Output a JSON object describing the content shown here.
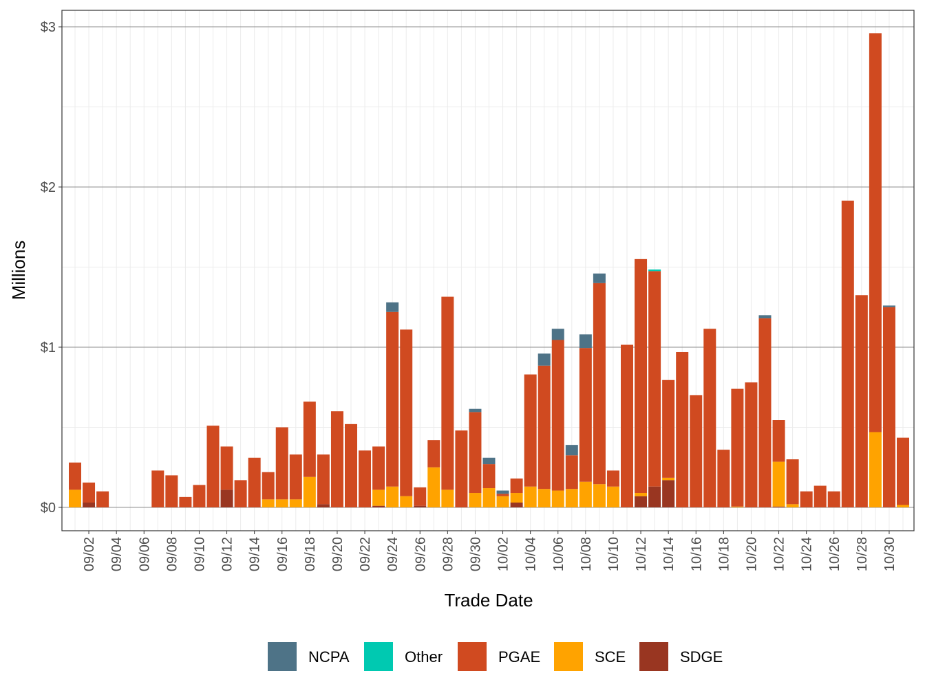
{
  "chart_data": {
    "type": "bar",
    "stacked": true,
    "xlabel": "Trade Date",
    "ylabel": "Millions",
    "ylim": [
      0,
      3
    ],
    "y_ticks": [
      {
        "value": 0,
        "label": "$0"
      },
      {
        "value": 1,
        "label": "$1"
      },
      {
        "value": 2,
        "label": "$2"
      },
      {
        "value": 3,
        "label": "$3"
      }
    ],
    "x_ticks": [
      "09/02",
      "09/04",
      "09/06",
      "09/08",
      "09/10",
      "09/12",
      "09/14",
      "09/16",
      "09/18",
      "09/20",
      "09/22",
      "09/24",
      "09/26",
      "09/28",
      "09/30",
      "10/02",
      "10/04",
      "10/06",
      "10/08",
      "10/10",
      "10/12",
      "10/14",
      "10/16",
      "10/18",
      "10/20",
      "10/22",
      "10/24",
      "10/26",
      "10/28",
      "10/30"
    ],
    "categories": [
      "09/01",
      "09/02",
      "09/03",
      "09/04",
      "09/05",
      "09/06",
      "09/07",
      "09/08",
      "09/09",
      "09/10",
      "09/11",
      "09/12",
      "09/13",
      "09/14",
      "09/15",
      "09/16",
      "09/17",
      "09/18",
      "09/19",
      "09/20",
      "09/21",
      "09/22",
      "09/23",
      "09/24",
      "09/25",
      "09/26",
      "09/27",
      "09/28",
      "09/29",
      "09/30",
      "10/01",
      "10/02",
      "10/03",
      "10/04",
      "10/05",
      "10/06",
      "10/07",
      "10/08",
      "10/09",
      "10/10",
      "10/11",
      "10/12",
      "10/13",
      "10/14",
      "10/15",
      "10/16",
      "10/17",
      "10/18",
      "10/19",
      "10/20",
      "10/21",
      "10/22",
      "10/23",
      "10/24",
      "10/25",
      "10/26",
      "10/27",
      "10/28",
      "10/29",
      "10/30",
      "10/31"
    ],
    "series": [
      {
        "name": "SDGE",
        "color": "#993621",
        "values": [
          0,
          0.03,
          0,
          0,
          0,
          0,
          0,
          0,
          0,
          0,
          0,
          0.11,
          0,
          0,
          0,
          0,
          0,
          0,
          0.02,
          0,
          0,
          0,
          0.01,
          0,
          0,
          0.01,
          0,
          0,
          0,
          0,
          0,
          0,
          0.03,
          0,
          0,
          0,
          0,
          0,
          0,
          0,
          0,
          0.07,
          0.13,
          0.17,
          0,
          0,
          0,
          0,
          0,
          0,
          0,
          0.005,
          0,
          0,
          0,
          0,
          0,
          0,
          0,
          0,
          0
        ]
      },
      {
        "name": "SCE",
        "color": "#ffa300",
        "values": [
          0.11,
          0,
          0,
          0,
          0,
          0,
          0,
          0,
          0,
          0,
          0,
          0,
          0,
          0,
          0.05,
          0.05,
          0.05,
          0.19,
          0,
          0,
          0,
          0,
          0.1,
          0.13,
          0.07,
          0,
          0.25,
          0.11,
          0,
          0.09,
          0.12,
          0.07,
          0.06,
          0.13,
          0.115,
          0.105,
          0.115,
          0.16,
          0.145,
          0.13,
          0,
          0.02,
          0,
          0.015,
          0,
          0,
          0,
          0,
          0.005,
          0,
          0,
          0.28,
          0.02,
          0,
          0,
          0,
          0,
          0,
          0.47,
          0,
          0.015
        ]
      },
      {
        "name": "PGAE",
        "color": "#d04a20",
        "values": [
          0.17,
          0.125,
          0.1,
          0,
          0,
          0,
          0.23,
          0.2,
          0.065,
          0.14,
          0.51,
          0.27,
          0.17,
          0.31,
          0.17,
          0.45,
          0.28,
          0.47,
          0.31,
          0.6,
          0.52,
          0.355,
          0.27,
          1.09,
          1.04,
          0.115,
          0.17,
          1.205,
          0.48,
          0.505,
          0.15,
          0.015,
          0.09,
          0.7,
          0.77,
          0.94,
          0.21,
          0.835,
          1.255,
          0.1,
          1.015,
          1.46,
          1.345,
          0.61,
          0.97,
          0.7,
          1.115,
          0.36,
          0.735,
          0.78,
          1.18,
          0.26,
          0.28,
          0.1,
          0.135,
          0.1,
          1.915,
          1.325,
          2.49,
          1.25,
          0.42
        ]
      },
      {
        "name": "Other",
        "color": "#00c9b1",
        "values": [
          0,
          0,
          0,
          0,
          0,
          0,
          0,
          0,
          0,
          0,
          0,
          0,
          0,
          0,
          0,
          0,
          0,
          0,
          0,
          0,
          0,
          0,
          0,
          0,
          0,
          0,
          0,
          0,
          0,
          0,
          0,
          0,
          0,
          0,
          0,
          0,
          0,
          0,
          0,
          0,
          0,
          0,
          0.01,
          0,
          0,
          0,
          0,
          0,
          0,
          0,
          0,
          0,
          0,
          0,
          0,
          0,
          0,
          0,
          0,
          0,
          0
        ]
      },
      {
        "name": "NCPA",
        "color": "#4e7387",
        "values": [
          0,
          0,
          0,
          0,
          0,
          0,
          0,
          0,
          0,
          0,
          0,
          0,
          0,
          0,
          0,
          0,
          0,
          0,
          0,
          0,
          0,
          0,
          0,
          0.06,
          0,
          0,
          0,
          0,
          0,
          0.02,
          0.04,
          0.02,
          0,
          0,
          0.075,
          0.07,
          0.065,
          0.085,
          0.06,
          0,
          0,
          0,
          0,
          0,
          0,
          0,
          0,
          0,
          0,
          0,
          0.02,
          0,
          0,
          0,
          0,
          0,
          0,
          0,
          0,
          0.01,
          0
        ]
      }
    ],
    "legend": {
      "position": "bottom",
      "entries": [
        {
          "label": "NCPA",
          "color": "#4e7387"
        },
        {
          "label": "Other",
          "color": "#00c9b1"
        },
        {
          "label": "PGAE",
          "color": "#d04a20"
        },
        {
          "label": "SCE",
          "color": "#ffa300"
        },
        {
          "label": "SDGE",
          "color": "#993621"
        }
      ]
    },
    "grid": true
  }
}
